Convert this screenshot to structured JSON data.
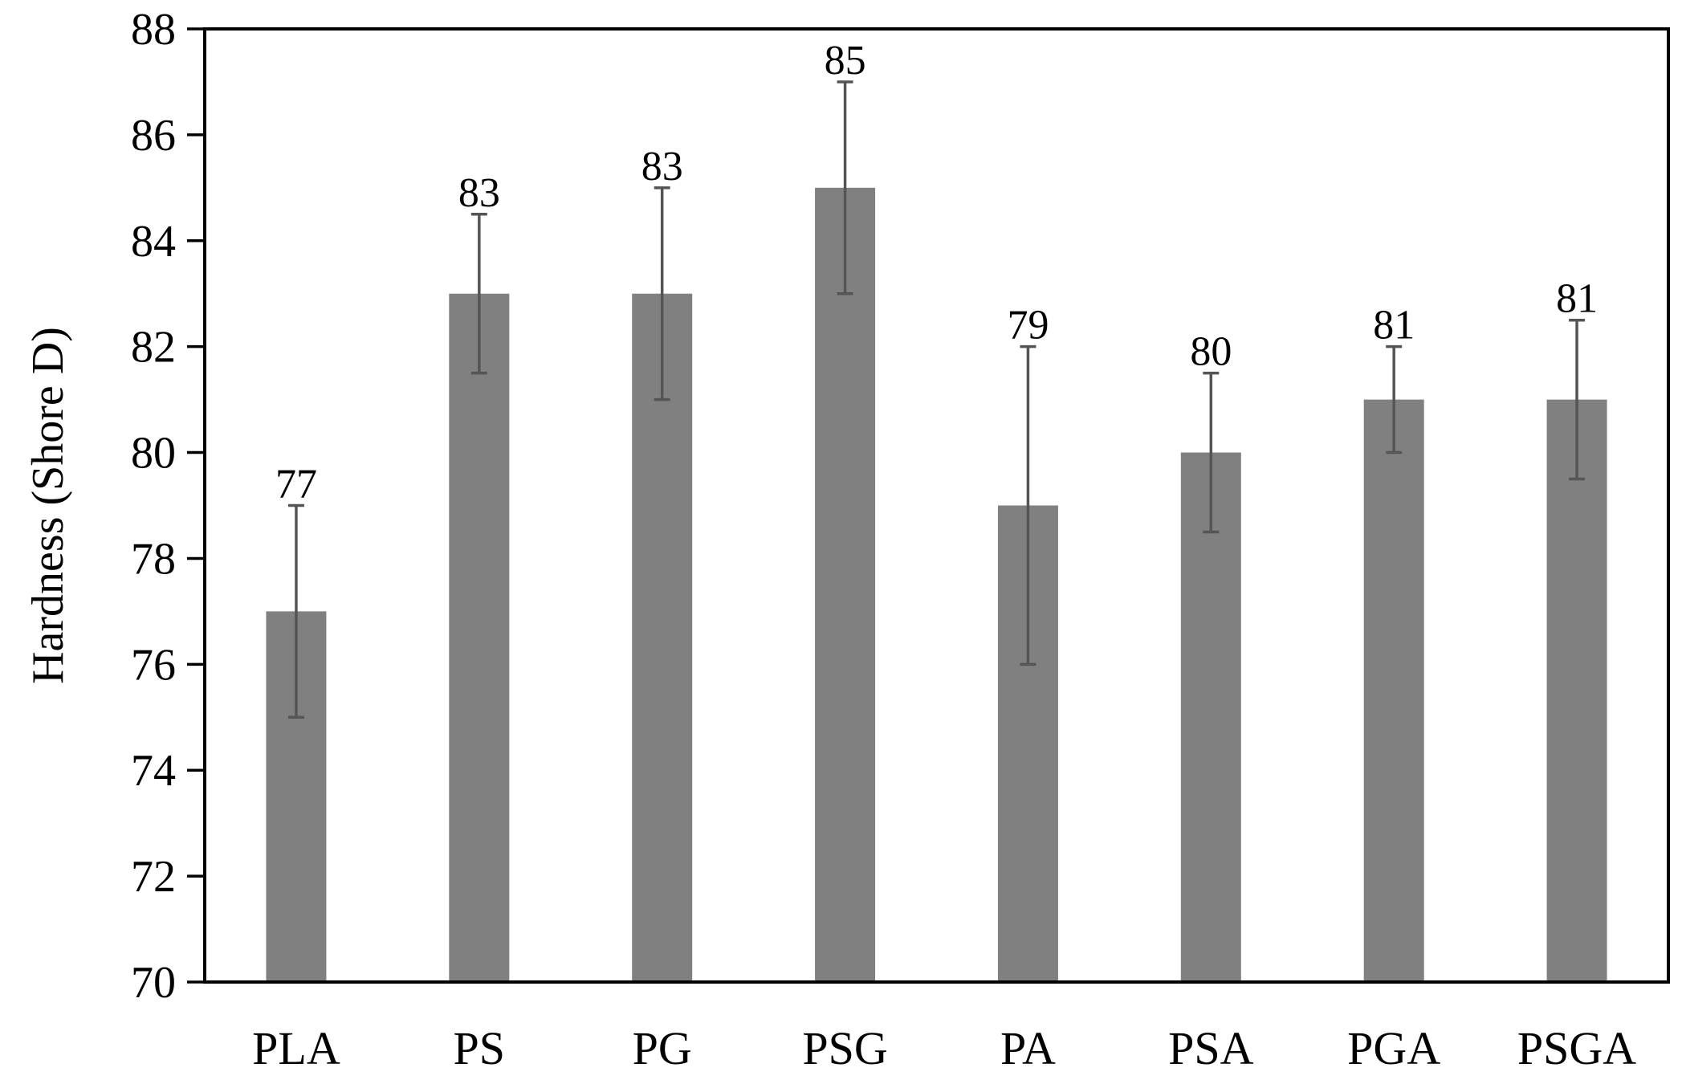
{
  "chart_data": {
    "type": "bar",
    "title": "",
    "xlabel": "",
    "ylabel": "Hardness (Shore D)",
    "ylim": [
      70,
      88
    ],
    "yticks": [
      70,
      72,
      74,
      76,
      78,
      80,
      82,
      84,
      86,
      88
    ],
    "grid": false,
    "categories": [
      "PLA",
      "PS",
      "PG",
      "PSG",
      "PA",
      "PSA",
      "PGA",
      "PSGA"
    ],
    "values": [
      77,
      83,
      83,
      85,
      79,
      80,
      81,
      81
    ],
    "error_low": [
      75,
      81.5,
      81,
      83,
      76,
      78.5,
      80,
      79.5
    ],
    "error_high": [
      79,
      84.5,
      85,
      87,
      82,
      81.5,
      82,
      82.5
    ],
    "data_labels": [
      "77",
      "83",
      "83",
      "85",
      "79",
      "80",
      "81",
      "81"
    ],
    "colors": {
      "bar": "#808080",
      "error_bar": "#555555",
      "axis": "#000000"
    }
  }
}
